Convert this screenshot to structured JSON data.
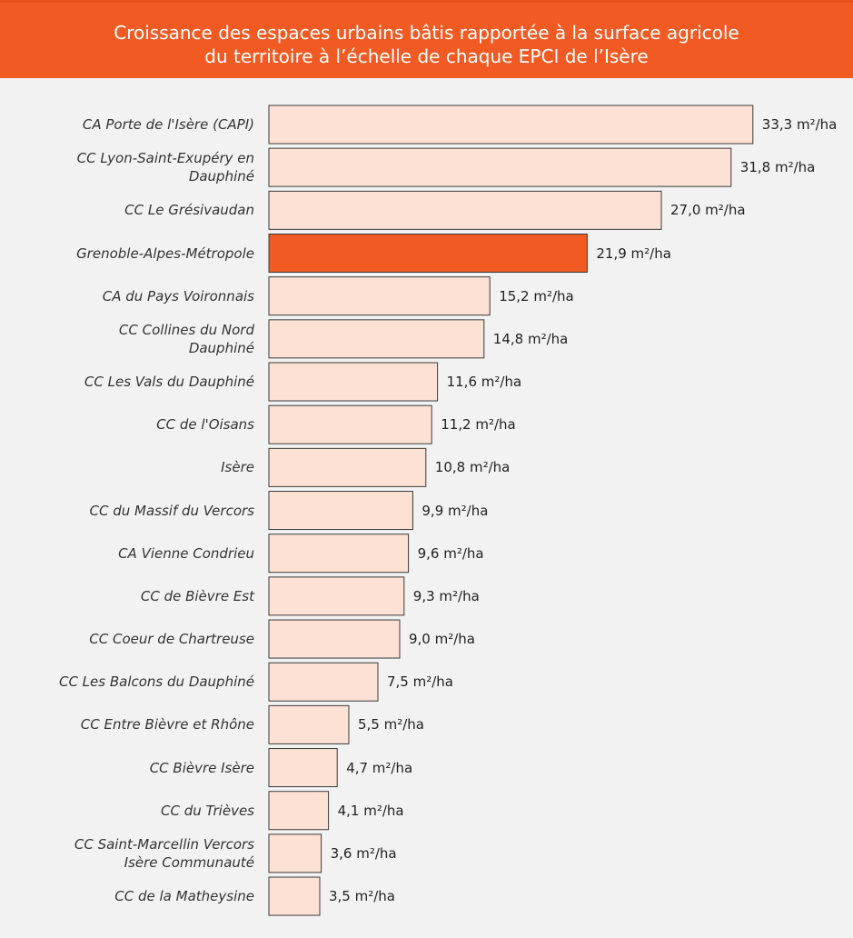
{
  "chart_data": {
    "type": "bar",
    "orientation": "horizontal",
    "title": "Croissance des espaces urbains bâtis rapportée à la surface agricole\ndu territoire à l’échelle de chaque EPCI de l’Isère",
    "categories": [
      "CA Porte de l'Isère (CAPI)",
      "CC Lyon-Saint-Exupéry en\nDauphiné",
      "CC Le Grésivaudan",
      "Grenoble-Alpes-Métropole",
      "CA du Pays Voironnais",
      "CC Collines du Nord\nDauphiné",
      "CC Les Vals du Dauphiné",
      "CC de l'Oisans",
      "Isère",
      "CC du Massif du Vercors",
      "CA Vienne Condrieu",
      "CC de Bièvre Est",
      "CC Coeur de Chartreuse",
      "CC Les Balcons du Dauphiné",
      "CC Entre Bièvre et Rhône",
      "CC Bièvre Isère",
      "CC du Trièves",
      "CC Saint-Marcellin Vercors\nIsère Communauté",
      "CC de la Matheysine"
    ],
    "values": [
      33.3,
      31.8,
      27.0,
      21.9,
      15.2,
      14.8,
      11.6,
      11.2,
      10.8,
      9.9,
      9.6,
      9.3,
      9.0,
      7.5,
      5.5,
      4.7,
      4.1,
      3.6,
      3.5
    ],
    "value_labels": [
      "33,3 m²/ha",
      "31,8 m²/ha",
      "27,0 m²/ha",
      "21,9 m²/ha",
      "15,2 m²/ha",
      "14,8 m²/ha",
      "11,6 m²/ha",
      "11,2 m²/ha",
      "10,8 m²/ha",
      "9,9 m²/ha",
      "9,6 m²/ha",
      "9,3 m²/ha",
      "9,0 m²/ha",
      "7,5 m²/ha",
      "5,5 m²/ha",
      "4,7 m²/ha",
      "4,1 m²/ha",
      "3,6 m²/ha",
      "3,5 m²/ha"
    ],
    "colors": [
      "#fde1d4",
      "#fde1d4",
      "#fde1d4",
      "#f15a22",
      "#fde1d4",
      "#fde1d4",
      "#fde1d4",
      "#fde1d4",
      "#fde1d4",
      "#fde1d4",
      "#fde1d4",
      "#fde1d4",
      "#fde1d4",
      "#fde1d4",
      "#fde1d4",
      "#fde1d4",
      "#fde1d4",
      "#fde1d4",
      "#fde1d4"
    ],
    "xlim": [
      0,
      35
    ]
  }
}
